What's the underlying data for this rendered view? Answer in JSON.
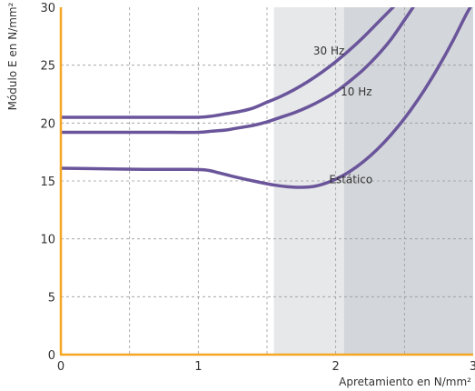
{
  "chart_data": {
    "type": "line",
    "title": "",
    "xlabel": "Apretamiento en N/mm²",
    "ylabel": "Módulo E en N/mm²",
    "xlim": [
      0,
      3
    ],
    "ylim": [
      0,
      30
    ],
    "x_ticks": [
      "0",
      "1",
      "2",
      "3"
    ],
    "y_ticks": [
      "0",
      "5",
      "10",
      "15",
      "20",
      "25",
      "30"
    ],
    "grid": true,
    "grid_style": "dashed",
    "bands": [
      {
        "from": 1.55,
        "to": 2.06,
        "color": "#e6e8ea"
      },
      {
        "from": 2.06,
        "to": 3.0,
        "color": "#d3d6da"
      }
    ],
    "colors": {
      "axis": "#f5a623",
      "grid": "#9a9a9a",
      "series": "#6a559b"
    },
    "series": [
      {
        "name": "30 Hz",
        "label_at": [
          1.95,
          25.9
        ],
        "x": [
          0,
          0.2,
          0.4,
          0.6,
          0.8,
          1.0,
          1.1,
          1.2,
          1.3,
          1.4,
          1.5,
          1.6,
          1.7,
          1.8,
          1.9,
          2.0,
          2.1,
          2.2,
          2.3,
          2.35,
          2.4,
          2.45
        ],
        "y": [
          20.5,
          20.5,
          20.5,
          20.5,
          20.5,
          20.5,
          20.6,
          20.8,
          21.0,
          21.3,
          21.8,
          22.3,
          22.9,
          23.6,
          24.4,
          25.3,
          26.3,
          27.4,
          28.6,
          29.2,
          29.8,
          30.4
        ]
      },
      {
        "name": "10 Hz",
        "label_at": [
          2.15,
          22.4
        ],
        "x": [
          0,
          0.2,
          0.4,
          0.6,
          0.8,
          1.0,
          1.1,
          1.2,
          1.3,
          1.4,
          1.5,
          1.6,
          1.7,
          1.8,
          1.9,
          2.0,
          2.1,
          2.2,
          2.3,
          2.4,
          2.5,
          2.58
        ],
        "y": [
          19.2,
          19.2,
          19.2,
          19.2,
          19.2,
          19.2,
          19.3,
          19.4,
          19.6,
          19.8,
          20.1,
          20.5,
          20.9,
          21.4,
          22.0,
          22.7,
          23.6,
          24.6,
          25.8,
          27.2,
          28.9,
          30.3
        ]
      },
      {
        "name": "Estático",
        "label_at": [
          2.11,
          14.8
        ],
        "x": [
          0,
          0.3,
          0.6,
          0.9,
          1.05,
          1.15,
          1.25,
          1.4,
          1.55,
          1.65,
          1.75,
          1.85,
          1.95,
          2.05,
          2.15,
          2.25,
          2.35,
          2.45,
          2.55,
          2.65,
          2.75,
          2.85,
          2.95,
          3.0
        ],
        "y": [
          16.1,
          16.05,
          16.0,
          16.0,
          15.95,
          15.7,
          15.4,
          15.0,
          14.65,
          14.5,
          14.45,
          14.55,
          14.9,
          15.45,
          16.2,
          17.15,
          18.3,
          19.65,
          21.2,
          22.95,
          24.9,
          27.05,
          29.4,
          30.4
        ]
      }
    ]
  }
}
